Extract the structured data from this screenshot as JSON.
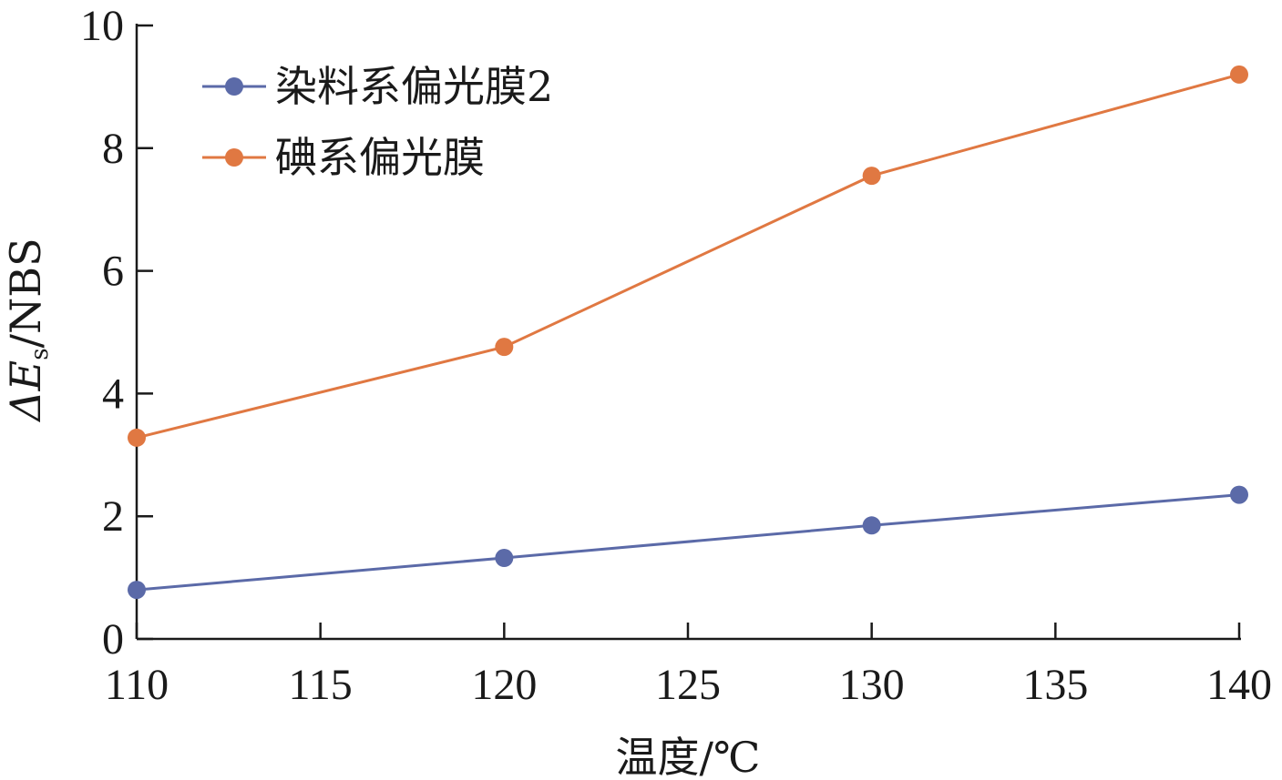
{
  "chart_data": {
    "type": "line",
    "xlabel": "温度/℃",
    "ylabel_parts": [
      "ΔE",
      "s",
      "/NBS"
    ],
    "xlim": [
      110,
      140
    ],
    "ylim": [
      0,
      10
    ],
    "x_ticks": [
      110,
      115,
      120,
      125,
      130,
      135,
      140
    ],
    "y_ticks": [
      0,
      2,
      4,
      6,
      8,
      10
    ],
    "grid": false,
    "legend_position": "top-left",
    "series": [
      {
        "name": "染料系偏光膜2",
        "color": "#5b6aa8",
        "x": [
          110,
          120,
          130,
          140
        ],
        "y": [
          0.8,
          1.32,
          1.85,
          2.35
        ]
      },
      {
        "name": "碘系偏光膜",
        "color": "#e07842",
        "x": [
          110,
          120,
          130,
          140
        ],
        "y": [
          3.28,
          4.76,
          7.55,
          9.2
        ]
      }
    ]
  }
}
